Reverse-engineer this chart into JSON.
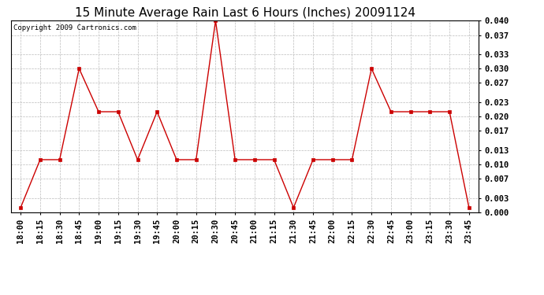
{
  "title": "15 Minute Average Rain Last 6 Hours (Inches) 20091124",
  "copyright_text": "Copyright 2009 Cartronics.com",
  "x_labels": [
    "18:00",
    "18:15",
    "18:30",
    "18:45",
    "19:00",
    "19:15",
    "19:30",
    "19:45",
    "20:00",
    "20:15",
    "20:30",
    "20:45",
    "21:00",
    "21:15",
    "21:30",
    "21:45",
    "22:00",
    "22:15",
    "22:30",
    "22:45",
    "23:00",
    "23:15",
    "23:30",
    "23:45"
  ],
  "y_values": [
    0.001,
    0.011,
    0.011,
    0.03,
    0.021,
    0.021,
    0.011,
    0.021,
    0.011,
    0.011,
    0.04,
    0.011,
    0.011,
    0.011,
    0.001,
    0.011,
    0.011,
    0.011,
    0.03,
    0.021,
    0.021,
    0.021,
    0.021,
    0.001
  ],
  "line_color": "#cc0000",
  "marker": "s",
  "marker_size": 2.5,
  "background_color": "#ffffff",
  "plot_bg_color": "#ffffff",
  "grid_color": "#bbbbbb",
  "ylim": [
    0.0,
    0.04
  ],
  "yticks": [
    0.0,
    0.003,
    0.007,
    0.01,
    0.013,
    0.017,
    0.02,
    0.023,
    0.027,
    0.03,
    0.033,
    0.037,
    0.04
  ],
  "title_fontsize": 11,
  "tick_fontsize": 7.5,
  "copyright_fontsize": 6.5
}
